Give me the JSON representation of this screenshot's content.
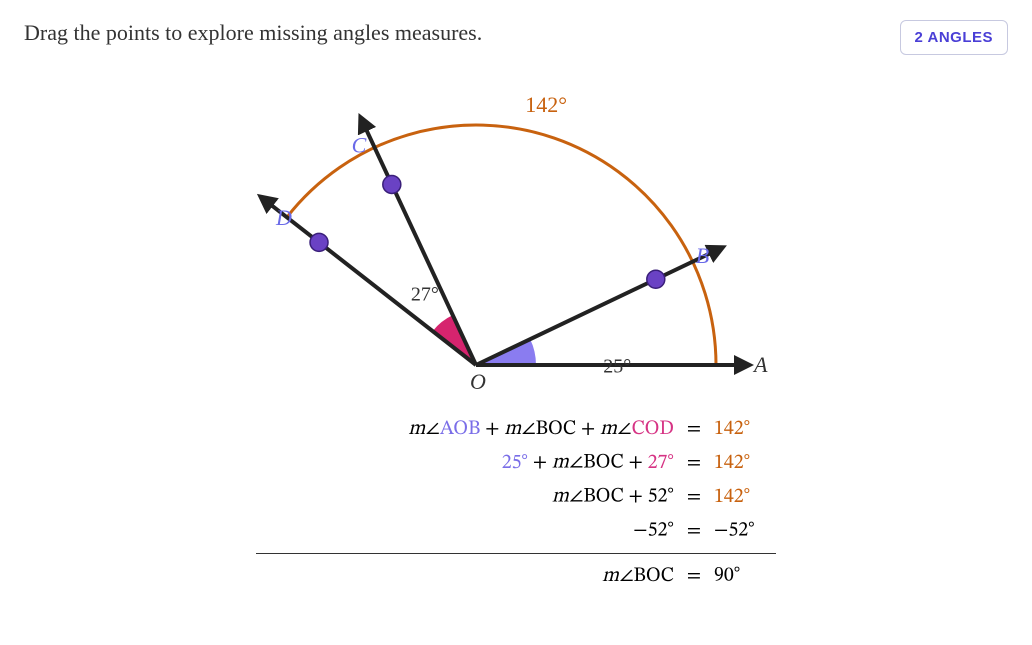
{
  "header": {
    "instruction": "Drag the points to explore missing angles measures.",
    "badge": "2 ANGLES"
  },
  "diagram": {
    "origin_label": "O",
    "points": {
      "A": {
        "label": "A",
        "angle_deg": 0
      },
      "B": {
        "label": "B",
        "angle_deg": 25.5
      },
      "C": {
        "label": "C",
        "angle_deg": 115
      },
      "D": {
        "label": "D",
        "angle_deg": 142
      }
    },
    "radius": 240,
    "arc_total_label": "142°",
    "angle_AOB_label": "25°",
    "angle_COD_label": "27°",
    "colors": {
      "ray": "#222222",
      "arc": "#c8620f",
      "point_fill": "#6a42c4",
      "point_stroke": "#3a1f7a",
      "aob_fill": "#8a7cf0",
      "cod_fill": "#d6246e",
      "label_point": "#6a6ae8",
      "label_A": "#333333",
      "label_O": "#333333"
    },
    "arc_label_color": "#c8620f"
  },
  "equations": {
    "rows": [
      {
        "left_html": "<span class='mangle'>m</span>∠<span class='c-aob'>AOB</span> + <span class='mangle'>m</span>∠BOC + <span class='mangle'>m</span>∠<span class='c-cod'>COD</span>",
        "right_html": "<span class='c-total'>142<span class='deg'>∘</span></span>"
      },
      {
        "left_html": "<span class='c-aob'>25<span class='deg'>∘</span></span> + <span class='mangle'>m</span>∠BOC + <span class='c-cod'>27<span class='deg'>∘</span></span>",
        "right_html": "<span class='c-total'>142<span class='deg'>∘</span></span>"
      },
      {
        "left_html": "<span class='mangle'>m</span>∠BOC + 52<span class='deg'>∘</span>",
        "right_html": "<span class='c-total'>142<span class='deg'>∘</span></span>"
      },
      {
        "left_html": "−52<span class='deg'>∘</span>",
        "right_html": "−52<span class='deg'>∘</span>"
      }
    ],
    "result": {
      "left_html": "<span class='mangle'>m</span>∠BOC",
      "right_html": "90<span class='deg'>∘</span>"
    }
  }
}
